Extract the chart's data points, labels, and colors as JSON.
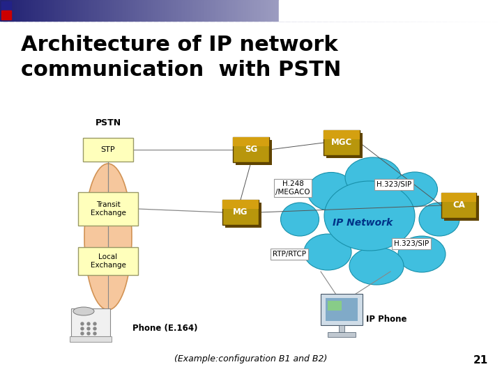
{
  "title_line1": "Architecture of IP network",
  "title_line2": "communication  with PSTN",
  "title_fontsize": 22,
  "bg_color": "#ffffff",
  "slide_number": "21",
  "pstn_label": "PSTN",
  "ip_network_label": "IP Network",
  "bottom_label": "(Example:configuration B1 and B2)",
  "phone_label": "Phone (E.164)",
  "ip_phone_label": "IP Phone",
  "cloud_color": "#40bfdf",
  "cloud_edge_color": "#1890aa",
  "pstn_ellipse_color": "#f5c090",
  "box_pstn_color": "#ffffbb",
  "box_gold_color": "#b8960c",
  "box_gold_dark": "#8a6e00",
  "label_box_bg": "#ffffff",
  "line_color": "#777777"
}
